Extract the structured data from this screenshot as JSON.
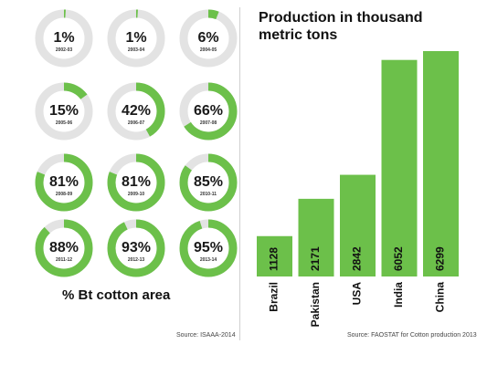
{
  "chart_data": [
    {
      "type": "pie",
      "title": "% Bt cotton area",
      "categories": [
        "2002-03",
        "2003-04",
        "2004-05",
        "2005-06",
        "2006-07",
        "2007-08",
        "2008-09",
        "2009-10",
        "2010-11",
        "2011-12",
        "2012-13",
        "2013-14"
      ],
      "values": [
        1,
        1,
        6,
        15,
        42,
        66,
        81,
        81,
        85,
        88,
        93,
        95
      ],
      "labels": [
        "1%",
        "1%",
        "6%",
        "15%",
        "42%",
        "66%",
        "81%",
        "81%",
        "85%",
        "88%",
        "93%",
        "95%"
      ],
      "source": "Source: ISAAA-2014",
      "colors": {
        "fill": "#6cc04a",
        "remainder": "#e3e3e3"
      }
    },
    {
      "type": "bar",
      "title": "Production in thousand metric tons",
      "categories": [
        "Brazil",
        "Pakistan",
        "USA",
        "India",
        "China"
      ],
      "values": [
        1128,
        2171,
        2842,
        6052,
        6299
      ],
      "ylim": [
        0,
        6299
      ],
      "source": "Source: FAOSTAT for Cotton production 2013",
      "colors": {
        "bar": "#6cc04a",
        "label": "#111111"
      }
    }
  ]
}
